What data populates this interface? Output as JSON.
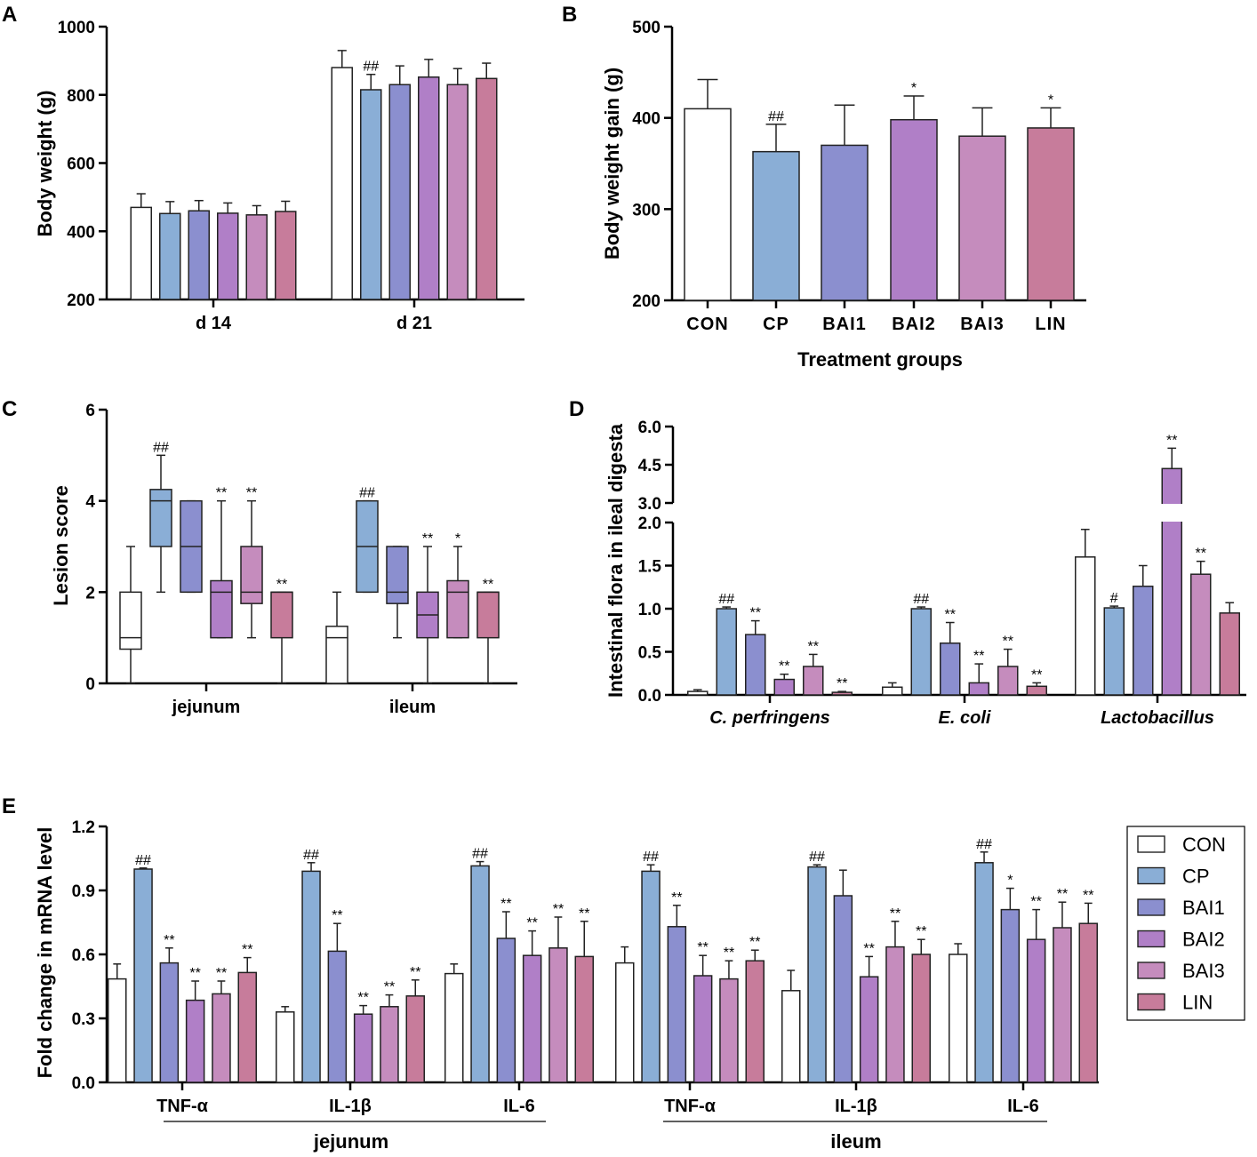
{
  "groups": [
    "CON",
    "CP",
    "BAI1",
    "BAI2",
    "BAI3",
    "LIN"
  ],
  "colors": {
    "CON": "#ffffff",
    "CP": "#8aaed6",
    "BAI1": "#8b8fcf",
    "BAI2": "#b07fc7",
    "BAI3": "#c58cbd",
    "LIN": "#c77c9b"
  },
  "chart_data": [
    {
      "panel": "A",
      "type": "bar",
      "ylabel": "Body weight  (g)",
      "ylim": [
        200,
        1000
      ],
      "yticks": [
        200,
        400,
        600,
        800,
        1000
      ],
      "categories": [
        "d 14",
        "d 21"
      ],
      "series": [
        {
          "name": "CON",
          "values": [
            470,
            880
          ],
          "err": [
            40,
            50
          ],
          "ann": [
            "",
            ""
          ]
        },
        {
          "name": "CP",
          "values": [
            452,
            815
          ],
          "err": [
            35,
            45
          ],
          "ann": [
            "",
            "##"
          ]
        },
        {
          "name": "BAI1",
          "values": [
            460,
            830
          ],
          "err": [
            30,
            55
          ],
          "ann": [
            "",
            ""
          ]
        },
        {
          "name": "BAI2",
          "values": [
            453,
            852
          ],
          "err": [
            30,
            52
          ],
          "ann": [
            "",
            ""
          ]
        },
        {
          "name": "BAI3",
          "values": [
            448,
            830
          ],
          "err": [
            27,
            47
          ],
          "ann": [
            "",
            ""
          ]
        },
        {
          "name": "LIN",
          "values": [
            458,
            848
          ],
          "err": [
            30,
            45
          ],
          "ann": [
            "",
            ""
          ]
        }
      ]
    },
    {
      "panel": "B",
      "type": "bar",
      "ylabel": "Body weight gain (g)",
      "xlabel": "Treatment groups",
      "ylim": [
        200,
        500
      ],
      "yticks": [
        200,
        300,
        400,
        500
      ],
      "categories": [
        "CON",
        "CP",
        "BAI1",
        "BAI2",
        "BAI3",
        "LIN"
      ],
      "values": [
        410,
        363,
        370,
        398,
        380,
        389
      ],
      "err": [
        32,
        30,
        44,
        26,
        31,
        22
      ],
      "ann": [
        "",
        "##",
        "",
        "*",
        "",
        "*"
      ]
    },
    {
      "panel": "C",
      "type": "box",
      "ylabel": "Lesion score",
      "ylim": [
        0,
        6
      ],
      "yticks": [
        0,
        2,
        4,
        6
      ],
      "categories": [
        "jejunum",
        "ileum"
      ],
      "series": [
        {
          "name": "CON",
          "boxes": [
            {
              "min": 0,
              "q1": 0.75,
              "med": 1,
              "q3": 2,
              "max": 3,
              "ann": ""
            },
            {
              "min": 0,
              "q1": 0,
              "med": 1,
              "q3": 1.25,
              "max": 2,
              "ann": ""
            }
          ]
        },
        {
          "name": "CP",
          "boxes": [
            {
              "min": 2,
              "q1": 3,
              "med": 4,
              "q3": 4.25,
              "max": 5,
              "ann": "##"
            },
            {
              "min": 2,
              "q1": 2,
              "med": 3,
              "q3": 4,
              "max": 4,
              "ann": "##"
            }
          ]
        },
        {
          "name": "BAI1",
          "boxes": [
            {
              "min": 2,
              "q1": 2,
              "med": 3,
              "q3": 4,
              "max": 4,
              "ann": ""
            },
            {
              "min": 1,
              "q1": 1.75,
              "med": 2,
              "q3": 3,
              "max": 3,
              "ann": ""
            }
          ]
        },
        {
          "name": "BAI2",
          "boxes": [
            {
              "min": 1,
              "q1": 1,
              "med": 2,
              "q3": 2.25,
              "max": 4,
              "ann": "**"
            },
            {
              "min": 0,
              "q1": 1,
              "med": 1.5,
              "q3": 2,
              "max": 3,
              "ann": "**"
            }
          ]
        },
        {
          "name": "BAI3",
          "boxes": [
            {
              "min": 1,
              "q1": 1.75,
              "med": 2,
              "q3": 3,
              "max": 4,
              "ann": "**"
            },
            {
              "min": 1,
              "q1": 1,
              "med": 2,
              "q3": 2.25,
              "max": 3,
              "ann": "*"
            }
          ]
        },
        {
          "name": "LIN",
          "boxes": [
            {
              "min": 0,
              "q1": 1,
              "med": 2,
              "q3": 2,
              "max": 2,
              "ann": "**"
            },
            {
              "min": 0,
              "q1": 1,
              "med": 2,
              "q3": 2,
              "max": 2,
              "ann": "**"
            }
          ]
        }
      ]
    },
    {
      "panel": "D",
      "type": "bar",
      "ylabel": "Intestinal flora in ileal digesta",
      "ylim_lower": [
        0,
        2.0
      ],
      "yticks_lower": [
        "0.0",
        "0.5",
        "1.0",
        "1.5",
        "2.0"
      ],
      "ylim_upper": [
        3.0,
        6.0
      ],
      "yticks_upper": [
        "3.0",
        "4.5",
        "6.0"
      ],
      "categories": [
        "C. perfringens",
        "E. coli",
        "Lactobacillus"
      ],
      "series": [
        {
          "name": "CON",
          "values": [
            0.04,
            0.09,
            1.6
          ],
          "err": [
            0.02,
            0.05,
            0.32
          ],
          "ann": [
            "",
            "",
            ""
          ]
        },
        {
          "name": "CP",
          "values": [
            1.0,
            1.0,
            1.01
          ],
          "err": [
            0.02,
            0.02,
            0.02
          ],
          "ann": [
            "##",
            "##",
            "#"
          ]
        },
        {
          "name": "BAI1",
          "values": [
            0.7,
            0.6,
            1.26
          ],
          "err": [
            0.16,
            0.24,
            0.24
          ],
          "ann": [
            "**",
            "**",
            ""
          ]
        },
        {
          "name": "BAI2",
          "values": [
            0.18,
            0.14,
            4.35
          ],
          "err": [
            0.06,
            0.22,
            0.8
          ],
          "ann": [
            "**",
            "**",
            "**"
          ]
        },
        {
          "name": "BAI3",
          "values": [
            0.33,
            0.33,
            1.4
          ],
          "err": [
            0.14,
            0.2,
            0.15
          ],
          "ann": [
            "**",
            "**",
            "**"
          ]
        },
        {
          "name": "LIN",
          "values": [
            0.03,
            0.1,
            0.95
          ],
          "err": [
            0.01,
            0.04,
            0.12
          ],
          "ann": [
            "**",
            "**",
            ""
          ]
        }
      ]
    },
    {
      "panel": "E",
      "type": "bar",
      "ylabel": "Fold change in mRNA level",
      "ylim": [
        0,
        1.2
      ],
      "yticks": [
        "0.0",
        "0.3",
        "0.6",
        "0.9",
        "1.2"
      ],
      "categories": [
        "TNF-α",
        "IL-1β",
        "IL-6",
        "TNF-α",
        "IL-1β",
        "IL-6"
      ],
      "supergroups": [
        "jejunum",
        "ileum"
      ],
      "series": [
        {
          "name": "CON",
          "values": [
            0.485,
            0.33,
            0.51,
            0.56,
            0.43,
            0.6
          ],
          "err": [
            0.07,
            0.025,
            0.045,
            0.075,
            0.095,
            0.05
          ],
          "ann": [
            "",
            "",
            "",
            "",
            "",
            ""
          ]
        },
        {
          "name": "CP",
          "values": [
            1.0,
            0.99,
            1.015,
            0.99,
            1.01,
            1.03
          ],
          "err": [
            0.005,
            0.04,
            0.02,
            0.03,
            0.01,
            0.05
          ],
          "ann": [
            "##",
            "##",
            "##",
            "##",
            "##",
            "##"
          ]
        },
        {
          "name": "BAI1",
          "values": [
            0.56,
            0.615,
            0.675,
            0.73,
            0.875,
            0.81
          ],
          "err": [
            0.07,
            0.13,
            0.125,
            0.1,
            0.12,
            0.1
          ],
          "ann": [
            "**",
            "**",
            "**",
            "**",
            "",
            "*"
          ]
        },
        {
          "name": "BAI2",
          "values": [
            0.385,
            0.32,
            0.595,
            0.5,
            0.495,
            0.67
          ],
          "err": [
            0.09,
            0.04,
            0.115,
            0.095,
            0.095,
            0.14
          ],
          "ann": [
            "**",
            "**",
            "**",
            "**",
            "**",
            "**"
          ]
        },
        {
          "name": "BAI3",
          "values": [
            0.415,
            0.355,
            0.63,
            0.485,
            0.635,
            0.725
          ],
          "err": [
            0.06,
            0.055,
            0.145,
            0.085,
            0.12,
            0.12
          ],
          "ann": [
            "**",
            "**",
            "**",
            "**",
            "**",
            "**"
          ]
        },
        {
          "name": "LIN",
          "values": [
            0.515,
            0.405,
            0.59,
            0.57,
            0.6,
            0.745
          ],
          "err": [
            0.07,
            0.075,
            0.165,
            0.05,
            0.07,
            0.095
          ],
          "ann": [
            "**",
            "**",
            "**",
            "**",
            "**",
            "**"
          ]
        }
      ],
      "legend": [
        "CON",
        "CP",
        "BAI1",
        "BAI2",
        "BAI3",
        "LIN"
      ]
    }
  ]
}
